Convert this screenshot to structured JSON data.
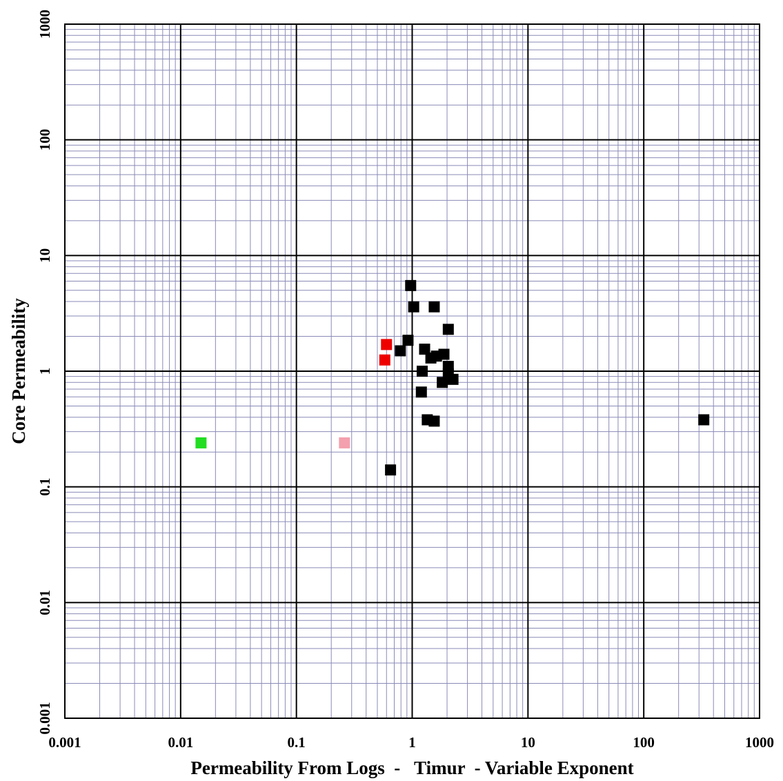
{
  "chart_data": {
    "type": "scatter",
    "title": "",
    "xlabel": "Permeability From Logs  -   Timur  - Variable Exponent",
    "ylabel": "Core Permeability",
    "xscale": "log",
    "yscale": "log",
    "xlim": [
      0.001,
      1000
    ],
    "ylim": [
      0.001,
      1000
    ],
    "x_ticks": [
      "0.001",
      "0.01",
      "0.1",
      "1",
      "10",
      "100",
      "1000"
    ],
    "y_ticks": [
      "0.001",
      "0.01",
      "0.1",
      "1",
      "10",
      "100",
      "1000"
    ],
    "grid": true,
    "marker": "square",
    "colors": {
      "major_grid": "#000000",
      "minor_grid": "#8a8ab8",
      "default_point": "#000000",
      "red_point": "#ee0000",
      "green_point": "#22dd22",
      "pink_point": "#f4a0ae"
    },
    "series": [
      {
        "color": "#000000",
        "points": [
          {
            "x": 0.97,
            "y": 5.5
          },
          {
            "x": 1.03,
            "y": 3.6
          },
          {
            "x": 1.55,
            "y": 3.6
          },
          {
            "x": 2.05,
            "y": 2.3
          },
          {
            "x": 0.92,
            "y": 1.85
          },
          {
            "x": 0.79,
            "y": 1.5
          },
          {
            "x": 1.28,
            "y": 1.55
          },
          {
            "x": 1.45,
            "y": 1.3
          },
          {
            "x": 1.62,
            "y": 1.35
          },
          {
            "x": 1.88,
            "y": 1.4
          },
          {
            "x": 2.05,
            "y": 1.1
          },
          {
            "x": 1.22,
            "y": 1.0
          },
          {
            "x": 2.05,
            "y": 0.95
          },
          {
            "x": 2.25,
            "y": 0.85
          },
          {
            "x": 1.82,
            "y": 0.8
          },
          {
            "x": 1.2,
            "y": 0.66
          },
          {
            "x": 1.35,
            "y": 0.38
          },
          {
            "x": 1.55,
            "y": 0.37
          },
          {
            "x": 0.65,
            "y": 0.14
          },
          {
            "x": 330,
            "y": 0.38
          }
        ]
      },
      {
        "color": "#ee0000",
        "points": [
          {
            "x": 0.6,
            "y": 1.7
          },
          {
            "x": 0.58,
            "y": 1.25
          }
        ]
      },
      {
        "color": "#22dd22",
        "points": [
          {
            "x": 0.015,
            "y": 0.24
          }
        ]
      },
      {
        "color": "#f4a0ae",
        "points": [
          {
            "x": 0.26,
            "y": 0.24
          }
        ]
      }
    ]
  }
}
